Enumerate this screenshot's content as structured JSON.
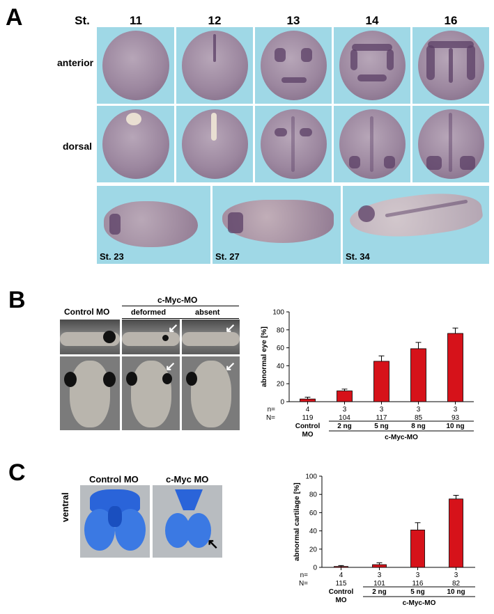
{
  "panelA": {
    "label": "A",
    "st_prefix": "St.",
    "stages": [
      "11",
      "12",
      "13",
      "14",
      "16"
    ],
    "rows": [
      "anterior",
      "dorsal"
    ],
    "late_stages": [
      "St. 23",
      "St. 27",
      "St. 34"
    ]
  },
  "panelB": {
    "label": "B",
    "header_control": "Control MO",
    "header_cmyc": "c-Myc-MO",
    "sub_deformed": "deformed",
    "sub_absent": "absent"
  },
  "panelC": {
    "label": "C",
    "header_control": "Control MO",
    "header_cmyc": "c-Myc MO",
    "side_label": "ventral"
  },
  "chart_data": [
    {
      "type": "bar",
      "ylabel": "abnormal eye [%]",
      "ylim": [
        0,
        100
      ],
      "yticks": [
        0,
        20,
        40,
        60,
        80,
        100
      ],
      "categories": [
        "Control MO",
        "2 ng",
        "5 ng",
        "8 ng",
        "10 ng"
      ],
      "values": [
        3,
        12,
        45,
        59,
        76
      ],
      "errors": [
        2,
        2,
        6,
        7,
        6
      ],
      "n_label": "n=",
      "N_label": "N=",
      "n": [
        "4",
        "3",
        "3",
        "3",
        "3"
      ],
      "N": [
        "119",
        "104",
        "117",
        "85",
        "93"
      ],
      "control_label_1": "Control",
      "control_label_2": "MO",
      "group_label": "c-Myc-MO",
      "bar_color": "#d6121a"
    },
    {
      "type": "bar",
      "ylabel": "abnormal cartilage [%]",
      "ylim": [
        0,
        100
      ],
      "yticks": [
        0,
        20,
        40,
        60,
        80,
        100
      ],
      "categories": [
        "Control MO",
        "2 ng",
        "5 ng",
        "10 ng"
      ],
      "values": [
        1,
        3,
        41,
        75
      ],
      "errors": [
        1,
        2,
        8,
        4
      ],
      "n_label": "n=",
      "N_label": "N=",
      "n": [
        "4",
        "3",
        "3",
        "3"
      ],
      "N": [
        "115",
        "101",
        "116",
        "82"
      ],
      "control_label_1": "Control",
      "control_label_2": "MO",
      "group_label": "c-Myc-MO",
      "bar_color": "#d6121a"
    }
  ]
}
